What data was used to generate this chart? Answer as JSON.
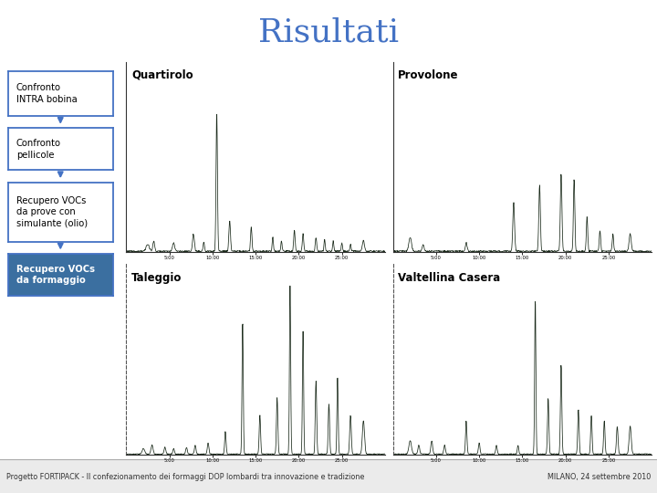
{
  "title": "Risultati",
  "title_fontsize": 26,
  "title_color": "#4472C4",
  "title_font": "serif",
  "bg_color": "#FFFFFF",
  "footer_text": "Progetto FORTIPACK - Il confezionamento dei formaggi DOP lombardi tra innovazione e tradizione",
  "footer_right": "MILANO, 24 settembre 2010",
  "footer_bg": "#EBEBEB",
  "flowbox_labels": [
    "Confronto\nINTRA bobina",
    "Confronto\npellicole",
    "Recupero VOCs\nda prove con\nsimulante (olio)",
    "Recupero VOCs\nda formaggio"
  ],
  "flowbox_colors": [
    "#FFFFFF",
    "#FFFFFF",
    "#FFFFFF",
    "#3B6FA0"
  ],
  "flowbox_text_colors": [
    "#000000",
    "#000000",
    "#000000",
    "#FFFFFF"
  ],
  "flowbox_bold": [
    false,
    false,
    false,
    true
  ],
  "arrow_color": "#4472C4",
  "chart_labels": [
    "Quartirolo",
    "Provolone",
    "Taleggio",
    "Valtellina Casera"
  ],
  "line_color": "#1A2A1A"
}
